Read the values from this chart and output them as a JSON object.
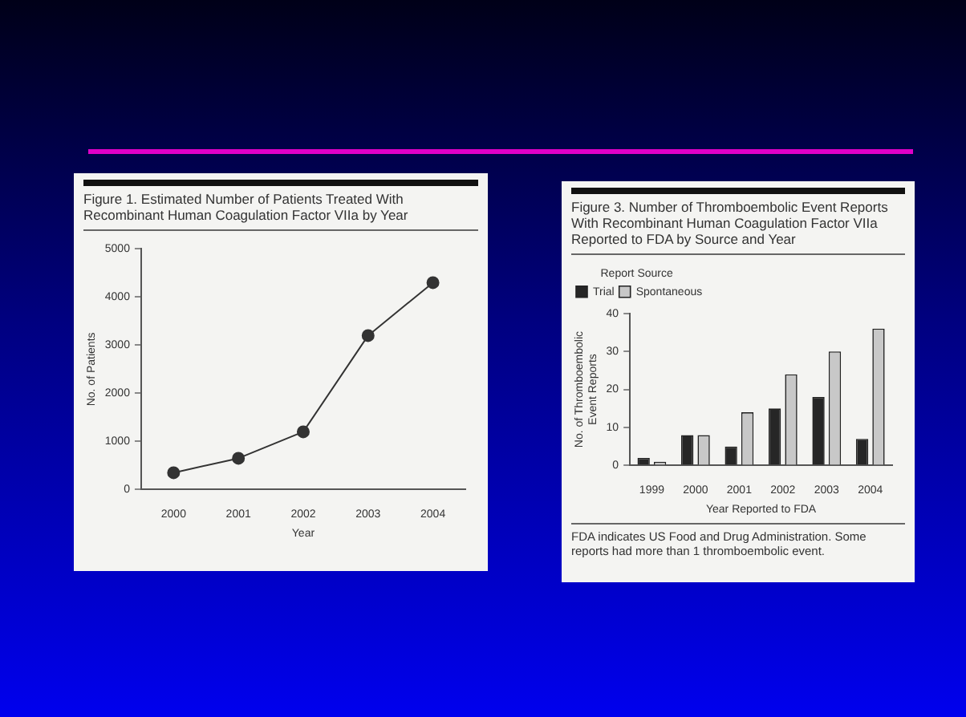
{
  "chart_data": [
    {
      "type": "line",
      "title": "Figure 1. Estimated Number of Patients Treated With Recombinant Human Coagulation Factor VIIa by Year",
      "xlabel": "Year",
      "ylabel": "No. of Patients",
      "categories": [
        "2000",
        "2001",
        "2002",
        "2003",
        "2004"
      ],
      "series": [
        {
          "color": "#333333",
          "values": [
            350,
            650,
            1200,
            3200,
            4300
          ]
        }
      ],
      "ylim": [
        0,
        5000
      ],
      "yticks": [
        0,
        1000,
        2000,
        3000,
        4000,
        5000
      ],
      "grid": false,
      "legend": false,
      "marker": "circle",
      "line_style": "solid"
    },
    {
      "type": "bar",
      "title": "Figure 3. Number of Thromboembolic Event Reports With Recombinant Human Coagulation Factor VIIa Reported to FDA by Source and Year",
      "xlabel": "Year Reported to FDA",
      "ylabel": "No. of Thromboembolic Event Reports",
      "legend_title": "Report Source",
      "categories": [
        "1999",
        "2000",
        "2001",
        "2002",
        "2003",
        "2004"
      ],
      "series": [
        {
          "name": "Trial",
          "color": "#262626",
          "values": [
            2,
            8,
            5,
            15,
            18,
            7
          ]
        },
        {
          "name": "Spontaneous",
          "color": "#c8c8c8",
          "values": [
            1,
            8,
            14,
            24,
            30,
            36
          ]
        }
      ],
      "ylim": [
        0,
        40
      ],
      "yticks": [
        0,
        10,
        20,
        30,
        40
      ],
      "grid": false,
      "legend": "top left",
      "annotations": [
        "FDA indicates US Food and Drug Administration. Some reports had more than 1 thromboembolic event."
      ]
    }
  ]
}
